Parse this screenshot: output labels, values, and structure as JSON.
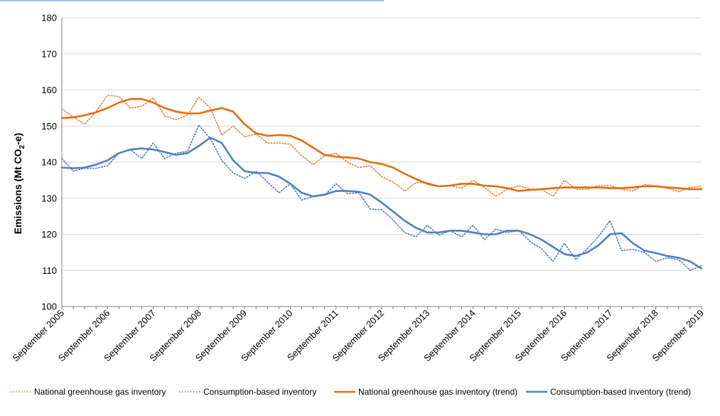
{
  "chart_data": {
    "type": "line",
    "ylabel": "Emissions (Mt CO2-e)",
    "ylabel_parts": {
      "before": "Emissions (Mt CO",
      "sub": "2",
      "after": "-e)"
    },
    "ylim": [
      100,
      180
    ],
    "yticks": [
      100,
      110,
      120,
      130,
      140,
      150,
      160,
      170,
      180
    ],
    "x_quarters": [
      "Sep 2005",
      "Dec 2005",
      "Mar 2006",
      "Jun 2006",
      "Sep 2006",
      "Dec 2006",
      "Mar 2007",
      "Jun 2007",
      "Sep 2007",
      "Dec 2007",
      "Mar 2008",
      "Jun 2008",
      "Sep 2008",
      "Dec 2008",
      "Mar 2009",
      "Jun 2009",
      "Sep 2009",
      "Dec 2009",
      "Mar 2010",
      "Jun 2010",
      "Sep 2010",
      "Dec 2010",
      "Mar 2011",
      "Jun 2011",
      "Sep 2011",
      "Dec 2011",
      "Mar 2012",
      "Jun 2012",
      "Sep 2012",
      "Dec 2012",
      "Mar 2013",
      "Jun 2013",
      "Sep 2013",
      "Dec 2013",
      "Mar 2014",
      "Jun 2014",
      "Sep 2014",
      "Dec 2014",
      "Mar 2015",
      "Jun 2015",
      "Sep 2015",
      "Dec 2015",
      "Mar 2016",
      "Jun 2016",
      "Sep 2016",
      "Dec 2016",
      "Mar 2017",
      "Jun 2017",
      "Sep 2017",
      "Dec 2017",
      "Mar 2018",
      "Jun 2018",
      "Sep 2018",
      "Dec 2018",
      "Mar 2019",
      "Jun 2019",
      "Sep 2019"
    ],
    "x_tick_labels": [
      "September 2005",
      "September 2006",
      "September 2007",
      "September 2008",
      "September 2009",
      "September 2010",
      "September 2011",
      "September 2012",
      "September 2013",
      "September 2014",
      "September 2015",
      "September 2016",
      "September 2017",
      "September 2018",
      "September 2019"
    ],
    "grid": true,
    "legend_position": "bottom",
    "series": [
      {
        "name": "National greenhouse gas inventory",
        "color": "#ed7d31",
        "style": "dotted",
        "values": [
          154.8,
          152.5,
          150.5,
          154.0,
          158.5,
          158.2,
          155.0,
          155.5,
          157.8,
          152.8,
          151.8,
          153.0,
          158.0,
          155.0,
          147.5,
          150.0,
          147.0,
          147.8,
          145.3,
          145.3,
          145.0,
          141.8,
          139.3,
          141.8,
          142.5,
          140.0,
          138.5,
          139.0,
          136.0,
          134.5,
          132.0,
          134.3,
          134.3,
          133.3,
          133.5,
          132.8,
          135.0,
          133.0,
          130.5,
          132.5,
          133.5,
          132.5,
          132.5,
          130.5,
          135.0,
          132.5,
          132.5,
          133.5,
          133.5,
          132.5,
          132.0,
          133.8,
          133.5,
          132.8,
          131.8,
          133.0,
          133.3
        ]
      },
      {
        "name": "Consumption-based inventory",
        "color": "#4a7ebb",
        "style": "dotted",
        "values": [
          141.0,
          137.5,
          138.3,
          138.3,
          139.0,
          142.5,
          143.5,
          141.0,
          145.3,
          141.0,
          142.5,
          143.0,
          150.3,
          146.5,
          140.5,
          137.0,
          135.5,
          137.5,
          134.5,
          131.5,
          134.0,
          129.5,
          130.5,
          130.8,
          134.0,
          131.3,
          131.5,
          127.0,
          126.8,
          124.0,
          120.5,
          119.3,
          122.5,
          119.8,
          121.0,
          119.3,
          122.5,
          118.5,
          121.5,
          120.5,
          121.0,
          118.0,
          116.0,
          112.5,
          117.5,
          113.0,
          116.0,
          119.5,
          123.8,
          115.5,
          115.8,
          115.0,
          112.5,
          113.5,
          113.0,
          110.0,
          111.3
        ]
      },
      {
        "name": "National greenhouse gas inventory (trend)",
        "color": "#e46c0a",
        "style": "solid",
        "values": [
          152.2,
          152.4,
          153.0,
          153.8,
          155.0,
          156.5,
          157.5,
          157.5,
          156.5,
          155.0,
          154.0,
          153.5,
          153.5,
          154.3,
          155.0,
          154.0,
          150.5,
          148.0,
          147.3,
          147.5,
          147.3,
          146.0,
          144.0,
          142.0,
          141.5,
          141.3,
          141.0,
          140.0,
          139.5,
          138.5,
          136.8,
          135.3,
          134.0,
          133.3,
          133.5,
          134.0,
          134.0,
          133.5,
          133.3,
          132.8,
          132.0,
          132.3,
          132.5,
          132.8,
          133.0,
          133.0,
          133.0,
          133.0,
          132.8,
          132.8,
          133.0,
          133.3,
          133.3,
          133.0,
          132.8,
          132.5,
          132.5
        ]
      },
      {
        "name": "Consumption-based inventory (trend)",
        "color": "#4f81bd",
        "style": "solid",
        "values": [
          138.5,
          138.3,
          138.5,
          139.3,
          140.5,
          142.5,
          143.5,
          143.8,
          143.5,
          142.8,
          142.0,
          142.5,
          144.5,
          146.8,
          145.3,
          140.5,
          137.5,
          137.0,
          137.0,
          136.0,
          134.0,
          131.5,
          130.5,
          131.0,
          132.0,
          132.0,
          131.8,
          131.0,
          128.8,
          126.3,
          123.8,
          121.8,
          120.5,
          120.5,
          121.0,
          121.0,
          120.5,
          120.0,
          120.0,
          121.0,
          121.0,
          120.0,
          118.5,
          116.5,
          114.5,
          114.0,
          115.0,
          117.0,
          120.0,
          120.3,
          117.5,
          115.5,
          114.8,
          114.0,
          113.5,
          112.5,
          110.5
        ]
      }
    ]
  }
}
